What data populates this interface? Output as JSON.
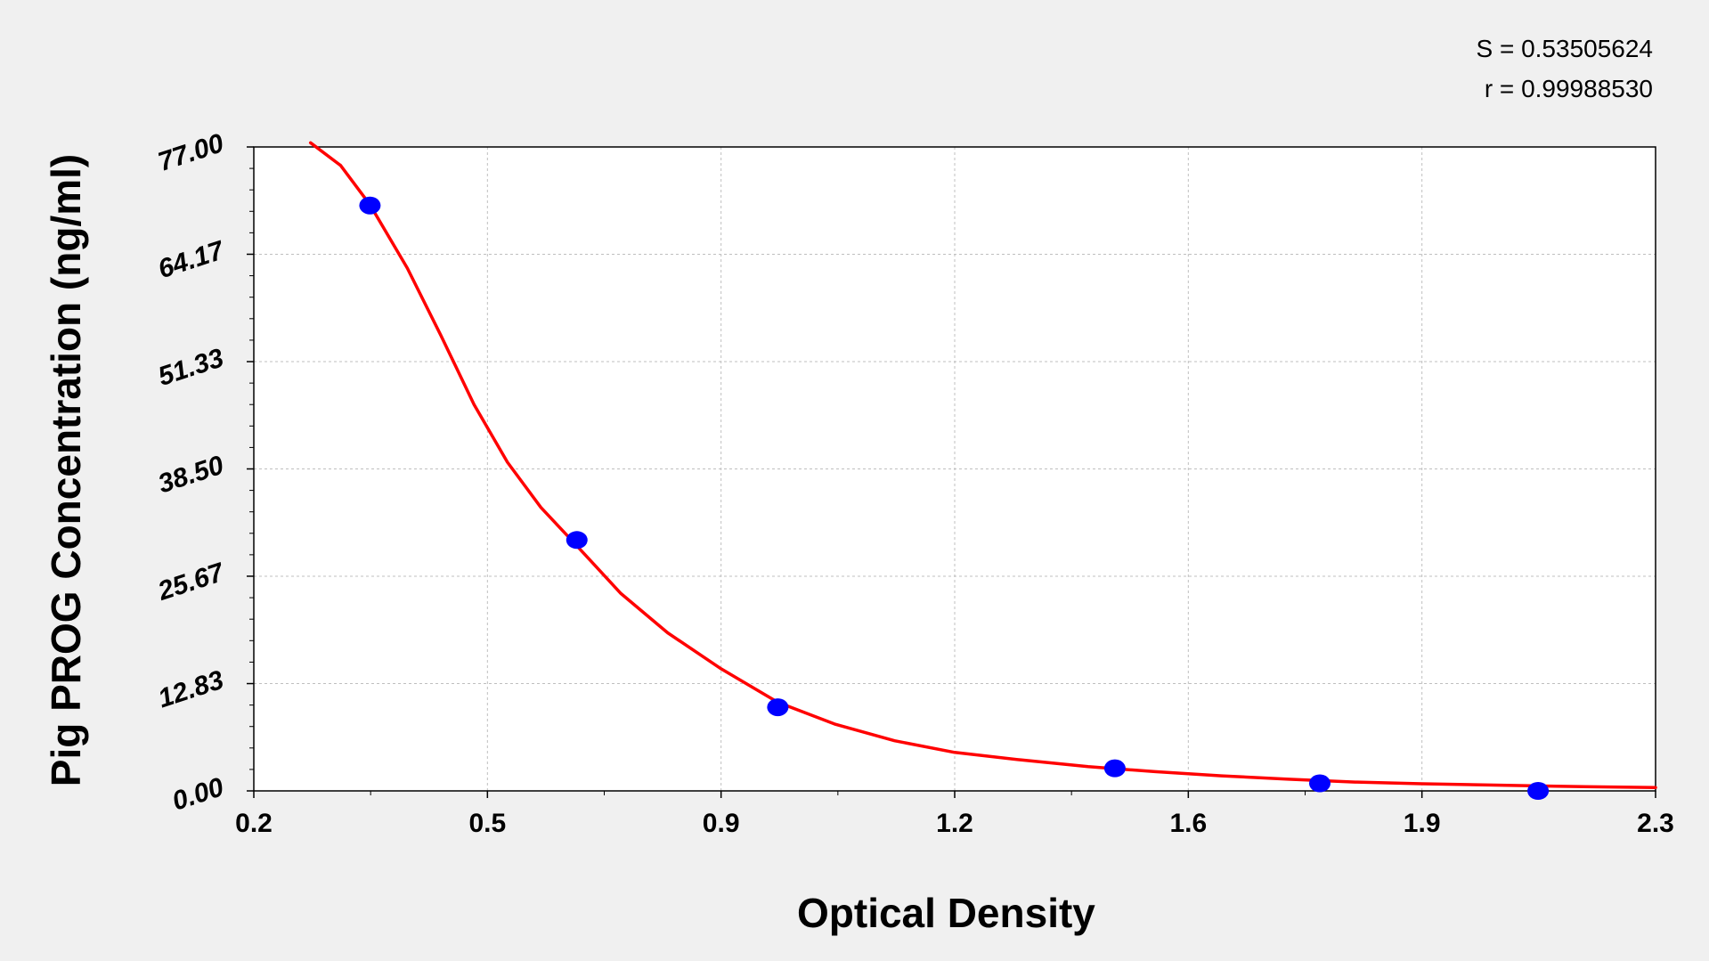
{
  "chart_data": {
    "type": "scatter",
    "title": "",
    "xlabel": "Optical Density",
    "ylabel": "Pig PROG Concentration (ng/ml)",
    "stats": [
      "S = 0.53505624",
      "r = 0.99988530"
    ],
    "xlim": [
      0.2,
      2.3
    ],
    "ylim": [
      0,
      77
    ],
    "xticks": [
      "0.2",
      "0.5",
      "0.9",
      "1.2",
      "1.6",
      "1.9",
      "2.3"
    ],
    "xtick_values": [
      0.2,
      0.55,
      0.9,
      1.25,
      1.6,
      1.95,
      2.3
    ],
    "yticks": [
      "0.00",
      "12.83",
      "25.67",
      "38.50",
      "51.33",
      "64.17",
      "77.00"
    ],
    "ytick_values": [
      0,
      12.83,
      25.67,
      38.5,
      51.33,
      64.17,
      77
    ],
    "grid": true,
    "points": {
      "x": [
        0.374,
        0.684,
        0.985,
        1.49,
        1.797,
        2.124
      ],
      "y": [
        70,
        30,
        10,
        2.7,
        0.9,
        0
      ]
    },
    "fit_curve": {
      "x": [
        0.285,
        0.33,
        0.374,
        0.43,
        0.48,
        0.53,
        0.58,
        0.63,
        0.684,
        0.75,
        0.82,
        0.9,
        0.985,
        1.07,
        1.16,
        1.25,
        1.35,
        1.45,
        1.55,
        1.65,
        1.75,
        1.85,
        1.95,
        2.05,
        2.15,
        2.3
      ],
      "y": [
        77.5,
        74.8,
        70.1,
        62.5,
        54.5,
        46.2,
        39.3,
        33.9,
        29.3,
        23.6,
        18.9,
        14.6,
        10.6,
        8.0,
        6.0,
        4.6,
        3.7,
        2.9,
        2.3,
        1.8,
        1.4,
        1.05,
        0.85,
        0.7,
        0.55,
        0.4
      ]
    },
    "colors": {
      "points": "#0000ff",
      "curve": "#ff0000",
      "background": "#f0f0f0",
      "plot_area": "#ffffff",
      "grid": "#bfbfbf"
    }
  }
}
